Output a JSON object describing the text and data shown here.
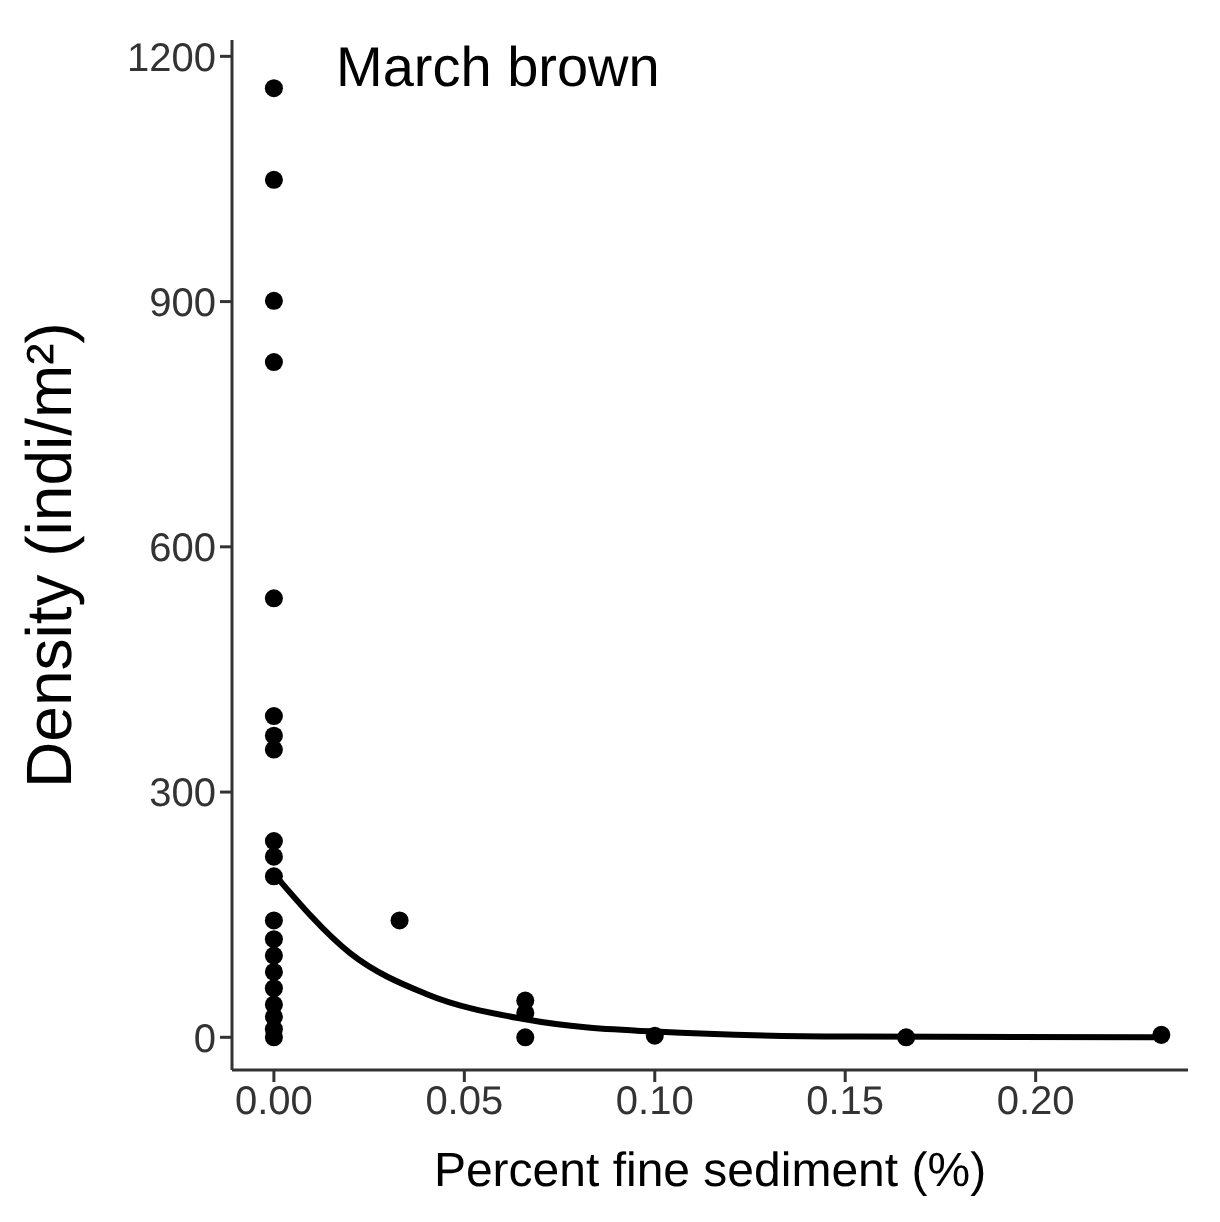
{
  "chart_data": {
    "type": "scatter",
    "title": "March brown",
    "xlabel": "Percent fine sediment (%)",
    "ylabel": "Density (indi/m²)",
    "xlim": [
      -0.011,
      0.24
    ],
    "xticks": [
      {
        "value": 0,
        "label": "0.00"
      },
      {
        "value": 0.05,
        "label": "0.05"
      },
      {
        "value": 0.1,
        "label": "0.10"
      },
      {
        "value": 0.15,
        "label": "0.15"
      },
      {
        "value": 0.2,
        "label": "0.20"
      }
    ],
    "ylim": [
      -40,
      1220
    ],
    "yticks": [
      0,
      300,
      600,
      900,
      1200
    ],
    "marker": "circle",
    "series": [
      {
        "color": "#000000",
        "x": [
          0,
          0,
          0,
          0,
          0,
          0,
          0,
          0,
          0,
          0,
          0,
          0,
          0,
          0,
          0,
          0,
          0,
          0,
          0,
          0,
          0.033,
          0.066,
          0.066,
          0.066,
          0.1,
          0.166,
          0.233
        ],
        "values": [
          1161,
          1049,
          901,
          826,
          537,
          393,
          369,
          352,
          240,
          221,
          197,
          143,
          120,
          100,
          80,
          60,
          40,
          25,
          10,
          0,
          143,
          45,
          30,
          0,
          2,
          0,
          3
        ]
      },
      {
        "type": "line",
        "color": "#000000",
        "marker": "none",
        "x": [
          0,
          0.02,
          0.04,
          0.066,
          0.1,
          0.15,
          0.233
        ],
        "values": [
          200,
          103,
          53,
          22,
          7,
          1,
          0
        ]
      }
    ]
  }
}
